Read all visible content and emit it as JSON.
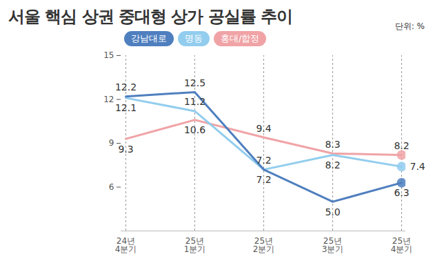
{
  "chart_data": {
    "type": "line",
    "title": "서울 핵심 상권 중대형 상가 공실률 추이",
    "ylabel": "단위: %",
    "categories": [
      "24년\n4분기",
      "25년\n1분기",
      "25년\n2분기",
      "25년\n3분기",
      "25년\n4분기"
    ],
    "series": [
      {
        "name": "강남대로",
        "color": "#4f7fbf",
        "values": [
          12.2,
          12.5,
          7.2,
          5.0,
          6.3
        ],
        "value_labels": [
          "12.2",
          "12.5",
          "7.2",
          "5.0",
          "6.3"
        ]
      },
      {
        "name": "명동",
        "color": "#92cdee",
        "values": [
          12.1,
          11.2,
          7.2,
          8.2,
          7.4
        ],
        "value_labels": [
          "12.1",
          "11.2",
          "7.2",
          "8.2",
          "7.4"
        ]
      },
      {
        "name": "홍대/합정",
        "color": "#f0a3a6",
        "values": [
          9.3,
          10.6,
          9.4,
          8.3,
          8.2
        ],
        "value_labels": [
          "9.3",
          "10.6",
          "9.4",
          "8.3",
          "8.2"
        ]
      }
    ],
    "ylim": [
      3,
      15
    ],
    "yticks": [
      6,
      9,
      12,
      15
    ],
    "grid": true,
    "data_labels": true
  }
}
